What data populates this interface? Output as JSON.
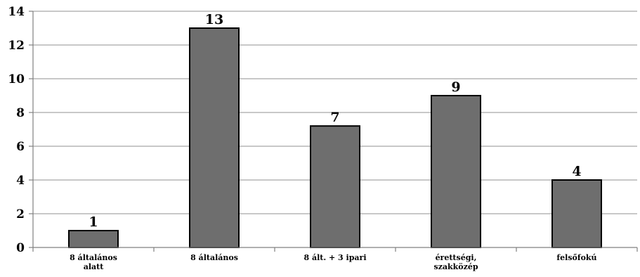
{
  "chart_data": {
    "type": "bar",
    "categories": [
      [
        "8 általános",
        "alatt"
      ],
      [
        "8 általános"
      ],
      [
        "8 ált. + 3 ipari"
      ],
      [
        "érettségi,",
        "szakközép"
      ],
      [
        "felsőfokú"
      ]
    ],
    "values": [
      1,
      13,
      7.2,
      9,
      4
    ],
    "data_labels": [
      "1",
      "13",
      "7",
      "9",
      "4"
    ],
    "ylim": [
      0,
      14
    ],
    "yticks": [
      0,
      2,
      4,
      6,
      8,
      10,
      12,
      14
    ],
    "grid": true,
    "legend": "none",
    "colors": {
      "bar": "#6e6e6e",
      "bar_border": "#000000",
      "grid": "#a6a6a6",
      "axis": "#808080"
    }
  }
}
